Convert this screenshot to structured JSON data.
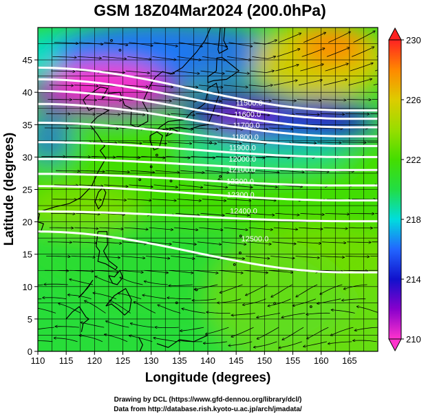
{
  "title": "GSM 18Z04Mar2024 (200.0hPa)",
  "xaxis": {
    "label": "Longitude (degrees)",
    "range": [
      110,
      170
    ],
    "ticks": [
      110,
      115,
      120,
      125,
      130,
      135,
      140,
      145,
      150,
      155,
      160,
      165
    ]
  },
  "yaxis": {
    "label": "Latitude  (degrees)",
    "range": [
      0,
      50
    ],
    "ticks": [
      0,
      5,
      10,
      15,
      20,
      25,
      30,
      35,
      40,
      45
    ]
  },
  "colorbar": {
    "range": [
      210,
      230
    ],
    "tick_labels": [
      "230",
      "226",
      "222",
      "218",
      "214",
      "210"
    ],
    "colors": {
      "210": "#ff33cc",
      "212": "#8800cc",
      "214": "#1111cc",
      "216": "#2266ff",
      "218": "#00dddd",
      "220": "#22dd44",
      "222": "#44dd00",
      "224": "#99dd00",
      "226": "#ddcc00",
      "228": "#ff8800",
      "230": "#ff2222"
    }
  },
  "contours": {
    "color": "#ffffff",
    "lines": [
      {
        "value": 11500,
        "label": "11500.0",
        "label_lon": 147.3,
        "label_lat": 38.4,
        "lat_west": 43.8,
        "lat_east": 37.2
      },
      {
        "value": 11600,
        "label": "11600.0",
        "label_lon": 147.0,
        "label_lat": 36.6,
        "lat_west": 42.0,
        "lat_east": 35.9
      },
      {
        "value": 11700,
        "label": "11700.0",
        "label_lon": 146.8,
        "label_lat": 34.9,
        "lat_west": 40.2,
        "lat_east": 34.6
      },
      {
        "value": 11800,
        "label": "11800.0",
        "label_lon": 146.6,
        "label_lat": 33.1,
        "lat_west": 38.2,
        "lat_east": 33.2
      },
      {
        "value": 11900,
        "label": "11900.0",
        "label_lon": 146.1,
        "label_lat": 31.5,
        "lat_west": 35.3,
        "lat_east": 31.7
      },
      {
        "value": 12000,
        "label": "12000.0",
        "label_lon": 146.1,
        "label_lat": 29.7,
        "lat_west": 32.3,
        "lat_east": 30.0
      },
      {
        "value": 12100,
        "label": "12100.0",
        "label_lon": 146.0,
        "label_lat": 28.1,
        "lat_west": 29.7,
        "lat_east": 28.0
      },
      {
        "value": 12200,
        "label": "12200.0",
        "label_lon": 145.7,
        "label_lat": 26.3,
        "lat_west": 27.4,
        "lat_east": 25.6
      },
      {
        "value": 12300,
        "label": "12300.0",
        "label_lon": 145.8,
        "label_lat": 24.2,
        "lat_west": 25.5,
        "lat_east": 23.3
      },
      {
        "value": 12400,
        "label": "12400.0",
        "label_lon": 146.3,
        "label_lat": 21.7,
        "lat_west": 21.6,
        "lat_east": 20.1
      },
      {
        "value": 12500,
        "label": "12500.0",
        "label_lon": 148.3,
        "label_lat": 17.4,
        "lat_west": 18.5,
        "lat_east": 12.2
      }
    ]
  },
  "credits": [
    "Drawing by DCL (https://www.gfd-dennou.org/library/dcl/)",
    "Data from http://database.rish.kyoto-u.ac.jp/arch/jmadata/"
  ]
}
